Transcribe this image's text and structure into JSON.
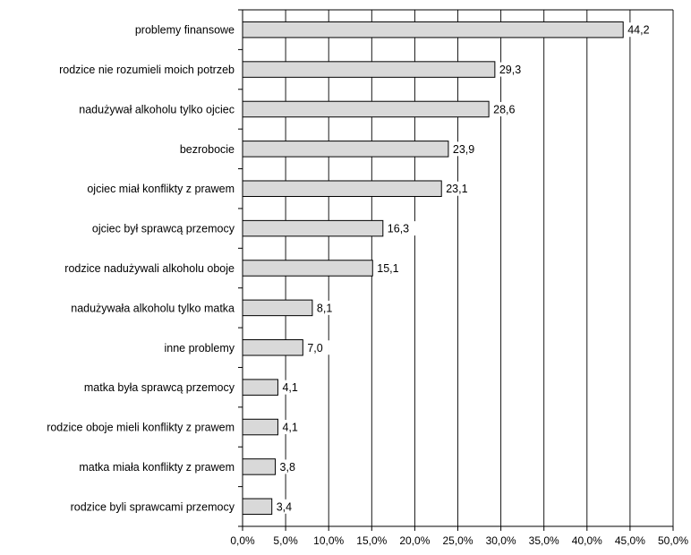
{
  "chart_data": {
    "type": "bar",
    "orientation": "horizontal",
    "title": "",
    "xlabel": "",
    "ylabel": "",
    "categories": [
      "problemy finansowe",
      "rodzice nie rozumieli moich potrzeb",
      "nadużywał alkoholu tylko ojciec",
      "bezrobocie",
      "ojciec miał konflikty z prawem",
      "ojciec był sprawcą przemocy",
      "rodzice nadużywali alkoholu oboje",
      "nadużywała alkoholu tylko matka",
      "inne problemy",
      "matka była sprawcą przemocy",
      "rodzice oboje mieli konflikty z prawem",
      "matka miała konflikty z prawem",
      "rodzice  byli sprawcami przemocy"
    ],
    "values": [
      44.2,
      29.3,
      28.6,
      23.9,
      23.1,
      16.3,
      15.1,
      8.1,
      7.0,
      4.1,
      4.1,
      3.8,
      3.4
    ],
    "value_labels": [
      "44,2",
      "29,3",
      "28,6",
      "23,9",
      "23,1",
      "16,3",
      "15,1",
      "8,1",
      "7,0",
      "4,1",
      "4,1",
      "3,8",
      "3,4"
    ],
    "xlim": [
      0,
      50
    ],
    "x_ticks": [
      "0,0%",
      "5,0%",
      "10,0%",
      "15,0%",
      "20,0%",
      "25,0%",
      "30,0%",
      "35,0%",
      "40,0%",
      "45,0%",
      "50,0%"
    ],
    "grid": true,
    "legend": "none",
    "colors": {
      "bar_fill": "#d9d9d9",
      "bar_stroke": "#000000",
      "grid": "#000000",
      "axis": "#000000"
    }
  }
}
